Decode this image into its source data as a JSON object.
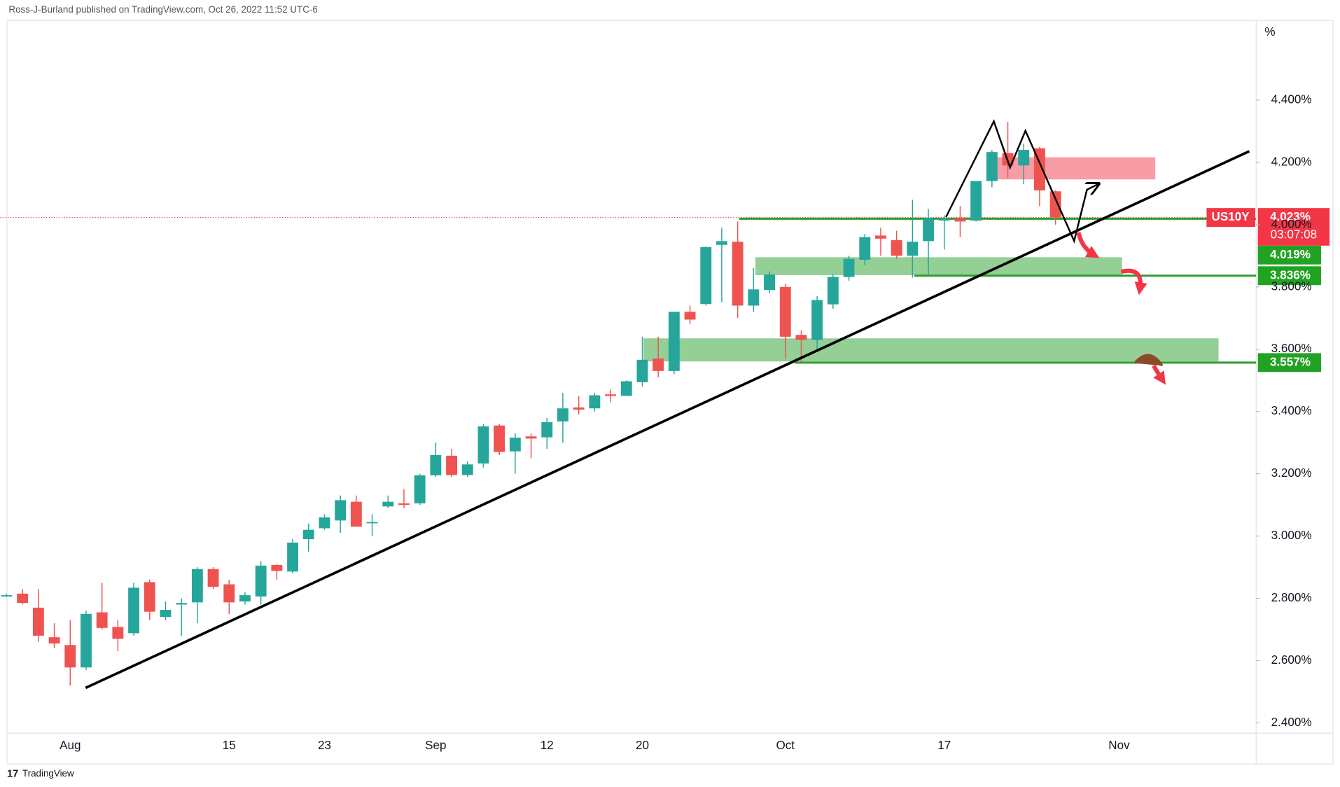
{
  "header": "Ross-J-Burland published on TradingView.com, Oct 26, 2022 11:52 UTC-6",
  "footer": "TradingView",
  "chart_data": {
    "type": "candlestick",
    "y_unit_label": "%",
    "categories": [
      null,
      null,
      null,
      null,
      "Aug",
      null,
      null,
      null,
      null,
      null,
      null,
      null,
      null,
      null,
      "15",
      null,
      null,
      null,
      null,
      null,
      "23",
      null,
      null,
      null,
      null,
      null,
      null,
      "Sep",
      null,
      null,
      null,
      null,
      null,
      null,
      "12",
      null,
      null,
      null,
      null,
      null,
      "20",
      null,
      null,
      null,
      null,
      null,
      null,
      null,
      null,
      "Oct",
      null,
      null,
      null,
      null,
      null,
      null,
      null,
      null,
      null,
      "17",
      null,
      null,
      null,
      null,
      null,
      null,
      null,
      null,
      null,
      null,
      "Nov",
      null,
      null,
      null,
      null,
      null,
      null,
      null,
      null
    ],
    "series": [
      {
        "name": "US10Y",
        "up_color": "#26a69a",
        "down_color": "#ef5350",
        "open": [
          2.81,
          2.815,
          2.77,
          2.675,
          2.65,
          2.578,
          2.755,
          2.708,
          2.688,
          2.852,
          2.74,
          2.78,
          2.787,
          2.894,
          2.845,
          2.79,
          2.806,
          2.907,
          2.886,
          2.99,
          3.025,
          3.05,
          3.11,
          3.045,
          3.095,
          3.105,
          3.105,
          3.195,
          3.258,
          3.196,
          3.233,
          3.355,
          3.272,
          3.32,
          3.317,
          3.368,
          3.413,
          3.41,
          3.455,
          3.45,
          3.494,
          3.57,
          3.53,
          3.72,
          3.745,
          3.935,
          3.945,
          3.74,
          3.79,
          3.8,
          3.646,
          3.63,
          3.744,
          3.832,
          3.887,
          3.965,
          3.95,
          3.9,
          3.947,
          4.013,
          4.02,
          4.013,
          4.14,
          4.23,
          4.19,
          4.245,
          4.107,
          null,
          null,
          null,
          null,
          null,
          null,
          null,
          null,
          null,
          null,
          null,
          null
        ],
        "high": [
          2.815,
          2.83,
          2.83,
          2.72,
          2.73,
          2.76,
          2.85,
          2.73,
          2.85,
          2.86,
          2.79,
          2.8,
          2.9,
          2.9,
          2.86,
          2.82,
          2.92,
          2.91,
          2.99,
          3.04,
          3.07,
          3.13,
          3.13,
          3.07,
          3.13,
          3.15,
          3.2,
          3.3,
          3.28,
          3.24,
          3.36,
          3.36,
          3.33,
          3.33,
          3.38,
          3.46,
          3.45,
          3.46,
          3.47,
          3.5,
          3.64,
          3.64,
          3.72,
          3.74,
          3.93,
          3.99,
          4.01,
          3.86,
          3.85,
          3.81,
          3.66,
          3.77,
          3.84,
          3.9,
          3.97,
          3.99,
          3.98,
          4.08,
          4.05,
          4.03,
          4.06,
          4.14,
          4.24,
          4.33,
          4.26,
          4.25,
          4.11,
          null,
          null,
          null,
          null,
          null,
          null,
          null,
          null,
          null,
          null,
          null,
          null
        ],
        "low": [
          2.805,
          2.78,
          2.66,
          2.64,
          2.52,
          2.57,
          2.7,
          2.63,
          2.68,
          2.73,
          2.73,
          2.68,
          2.72,
          2.83,
          2.75,
          2.78,
          2.78,
          2.86,
          2.88,
          2.95,
          3.02,
          3.01,
          3.03,
          3.0,
          3.09,
          3.09,
          3.1,
          3.19,
          3.19,
          3.19,
          3.22,
          3.26,
          3.2,
          3.25,
          3.28,
          3.3,
          3.39,
          3.4,
          3.43,
          3.45,
          3.48,
          3.51,
          3.52,
          3.68,
          3.74,
          3.75,
          3.7,
          3.72,
          3.78,
          3.57,
          3.56,
          3.6,
          3.73,
          3.82,
          3.87,
          3.9,
          3.89,
          3.83,
          3.84,
          3.92,
          3.96,
          4.01,
          4.12,
          4.15,
          4.13,
          4.06,
          4.0,
          null,
          null,
          null,
          null,
          null,
          null,
          null,
          null,
          null,
          null,
          null,
          null
        ],
        "close": [
          2.81,
          2.785,
          2.68,
          2.655,
          2.578,
          2.75,
          2.705,
          2.67,
          2.834,
          2.757,
          2.763,
          2.785,
          2.894,
          2.837,
          2.787,
          2.81,
          2.905,
          2.888,
          2.979,
          3.02,
          3.06,
          3.115,
          3.03,
          3.045,
          3.11,
          3.1,
          3.195,
          3.26,
          3.196,
          3.23,
          3.352,
          3.27,
          3.316,
          3.313,
          3.366,
          3.41,
          3.406,
          3.452,
          3.45,
          3.497,
          3.566,
          3.53,
          3.72,
          3.695,
          3.928,
          3.947,
          3.74,
          3.792,
          3.84,
          3.64,
          3.63,
          3.758,
          3.832,
          3.89,
          3.96,
          3.955,
          3.9,
          3.945,
          4.02,
          4.02,
          4.01,
          4.14,
          4.233,
          4.19,
          4.24,
          4.11,
          4.023,
          null,
          null,
          null,
          null,
          null,
          null,
          null,
          null,
          null,
          null,
          null,
          null
        ]
      }
    ],
    "ylim": [
      2.367,
      4.639
    ],
    "yticks": [
      {
        "value": 2.4,
        "label": "2.400%"
      },
      {
        "value": 2.6,
        "label": "2.600%"
      },
      {
        "value": 2.8,
        "label": "2.800%"
      },
      {
        "value": 3.0,
        "label": "3.000%"
      },
      {
        "value": 3.2,
        "label": "3.200%"
      },
      {
        "value": 3.4,
        "label": "3.400%"
      },
      {
        "value": 3.6,
        "label": "3.600%"
      },
      {
        "value": 3.8,
        "label": "3.800%"
      },
      {
        "value": 4.0,
        "label": "4.000%"
      },
      {
        "value": 4.2,
        "label": "4.200%"
      },
      {
        "value": 4.4,
        "label": "4.400%"
      }
    ],
    "countdown": "03:07:08",
    "price_labels": [
      {
        "value": 4.023,
        "label": "4.023%",
        "color": "#f23645"
      },
      {
        "value": 4.019,
        "label": "4.019%",
        "color": "#22a222"
      },
      {
        "value": 3.836,
        "label": "3.836%",
        "color": "#22a222"
      },
      {
        "value": 3.557,
        "label": "3.557%",
        "color": "#22a222"
      }
    ]
  }
}
